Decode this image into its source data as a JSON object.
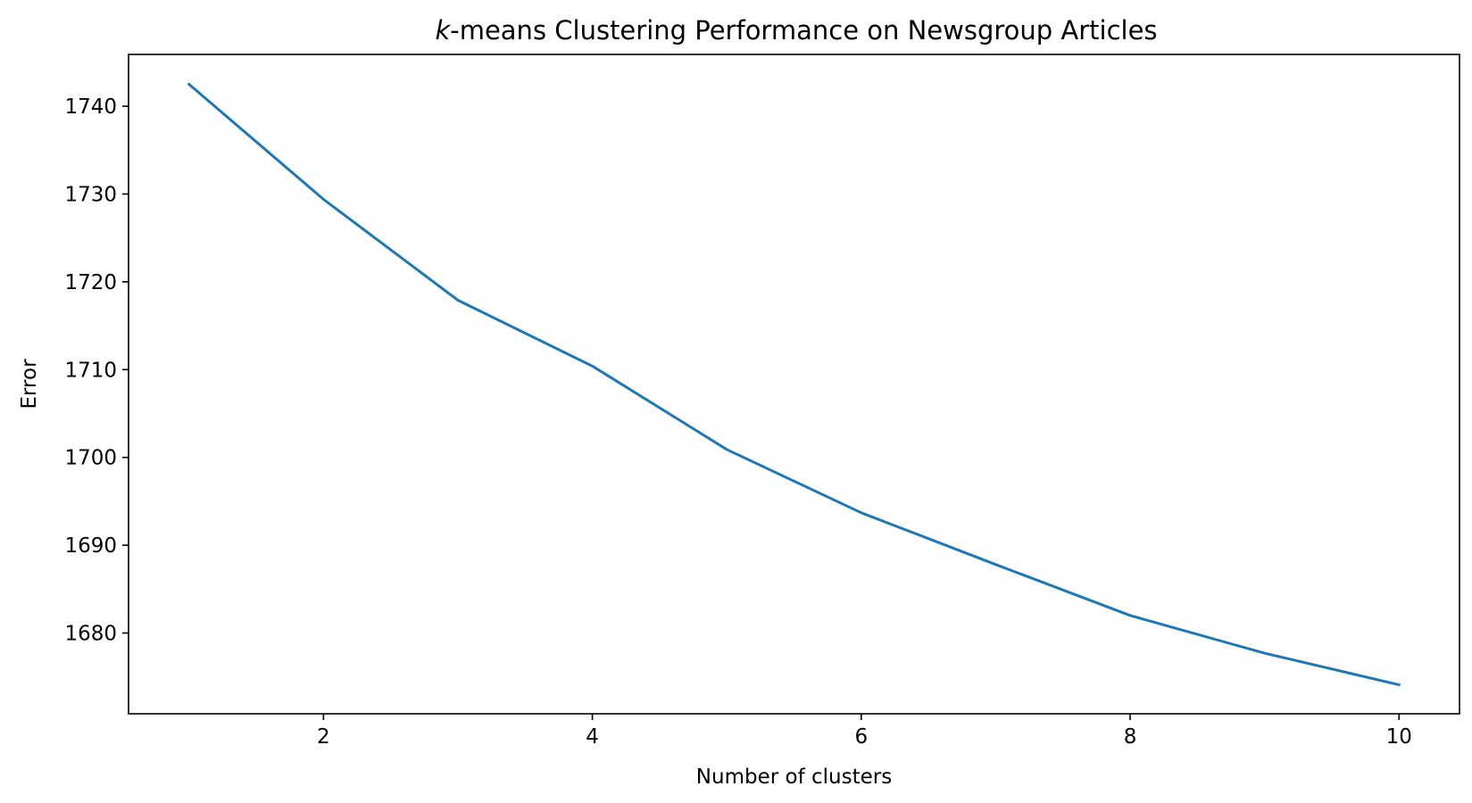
{
  "chart_data": {
    "type": "line",
    "title_prefix": "k",
    "title_rest": "-means Clustering Performance on Newsgroup Articles",
    "xlabel": "Number of clusters",
    "ylabel": "Error",
    "x": [
      1,
      2,
      3,
      4,
      5,
      6,
      7,
      8,
      9,
      10
    ],
    "series": [
      {
        "values": [
          1742.5,
          1729.4,
          1717.9,
          1710.4,
          1700.9,
          1693.7,
          1687.8,
          1682.0,
          1677.7,
          1674.1
        ],
        "color": "#1f77b4"
      }
    ],
    "xlim": [
      0.55,
      10.45
    ],
    "ylim": [
      1670.8,
      1745.9
    ],
    "xticks": [
      2,
      4,
      6,
      8,
      10
    ],
    "yticks": [
      1680,
      1690,
      1700,
      1710,
      1720,
      1730,
      1740
    ],
    "grid": false,
    "legend": "none"
  }
}
